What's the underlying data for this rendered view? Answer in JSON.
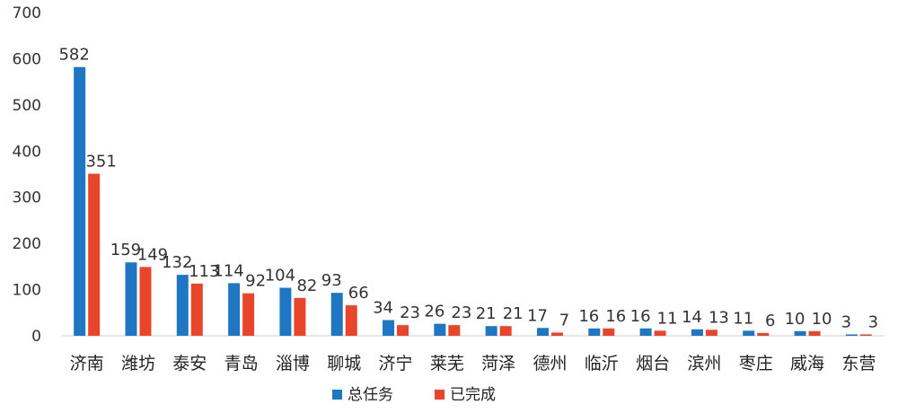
{
  "chart_data": {
    "type": "bar",
    "title": "",
    "xlabel": "",
    "ylabel": "",
    "ylim": [
      0,
      700
    ],
    "yticks": [
      0,
      100,
      200,
      300,
      400,
      500,
      600,
      700
    ],
    "grid": false,
    "legend_position": "bottom",
    "categories": [
      "济南",
      "潍坊",
      "泰安",
      "青岛",
      "淄博",
      "聊城",
      "济宁",
      "莱芜",
      "菏泽",
      "德州",
      "临沂",
      "烟台",
      "滨州",
      "枣庄",
      "威海",
      "东营"
    ],
    "series": [
      {
        "name": "总任务",
        "color": "#1f77c4",
        "values": [
          582,
          159,
          132,
          114,
          104,
          93,
          34,
          26,
          21,
          17,
          16,
          16,
          14,
          11,
          10,
          3
        ]
      },
      {
        "name": "已完成",
        "color": "#e8452a",
        "values": [
          351,
          149,
          113,
          92,
          82,
          66,
          23,
          23,
          21,
          7,
          16,
          11,
          13,
          6,
          10,
          3
        ]
      }
    ]
  }
}
